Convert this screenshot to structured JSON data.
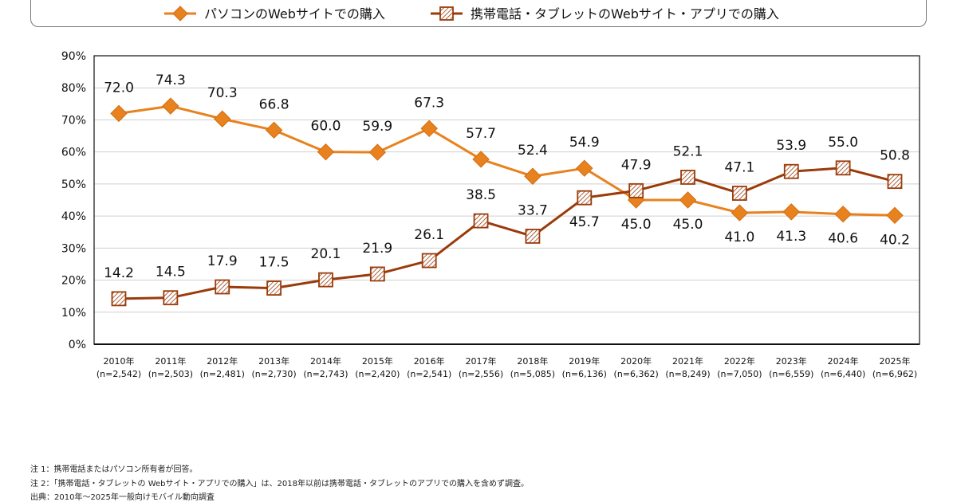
{
  "chart_data": {
    "type": "line",
    "title": "",
    "xlabel": "",
    "ylabel": "",
    "ylim": [
      0,
      90
    ],
    "y_ticks": [
      "0%",
      "10%",
      "20%",
      "30%",
      "40%",
      "50%",
      "60%",
      "70%",
      "80%",
      "90%"
    ],
    "y_tick_values": [
      0,
      10,
      20,
      30,
      40,
      50,
      60,
      70,
      80,
      90
    ],
    "grid": true,
    "legend_placement": "top",
    "categories": [
      "2010年",
      "2011年",
      "2012年",
      "2013年",
      "2014年",
      "2015年",
      "2016年",
      "2017年",
      "2018年",
      "2019年",
      "2020年",
      "2021年",
      "2022年",
      "2023年",
      "2024年",
      "2025年"
    ],
    "category_samples": [
      "(n=2,542)",
      "(n=2,503)",
      "(n=2,481)",
      "(n=2,730)",
      "(n=2,743)",
      "(n=2,420)",
      "(n=2,541)",
      "(n=2,556)",
      "(n=5,085)",
      "(n=6,136)",
      "(n=6,362)",
      "(n=8,249)",
      "(n=7,050)",
      "(n=6,559)",
      "(n=6,440)",
      "(n=6,962)"
    ],
    "series": [
      {
        "name": "パソコンのWebサイトでの購入",
        "marker": "diamond",
        "color": "#E8821E",
        "values": [
          72.0,
          74.3,
          70.3,
          66.8,
          60.0,
          59.9,
          67.3,
          57.7,
          52.4,
          54.9,
          45.0,
          45.0,
          41.0,
          41.3,
          40.6,
          40.2
        ],
        "labels": [
          "72.0",
          "74.3",
          "70.3",
          "66.8",
          "60.0",
          "59.9",
          "67.3",
          "57.7",
          "52.4",
          "54.9",
          "45.0",
          "45.0",
          "41.0",
          "41.3",
          "40.6",
          "40.2"
        ],
        "label_side": [
          "above",
          "above",
          "above",
          "above",
          "above",
          "above",
          "above",
          "above",
          "above",
          "above",
          "below",
          "below",
          "below",
          "below",
          "below",
          "below"
        ]
      },
      {
        "name": "携帯電話・タブレットのWebサイト・アプリでの購入",
        "marker": "hatched-square",
        "color": "#9A3B0B",
        "values": [
          14.2,
          14.5,
          17.9,
          17.5,
          20.1,
          21.9,
          26.1,
          38.5,
          33.7,
          45.7,
          47.9,
          52.1,
          47.1,
          53.9,
          55.0,
          50.8
        ],
        "labels": [
          "14.2",
          "14.5",
          "17.9",
          "17.5",
          "20.1",
          "21.9",
          "26.1",
          "38.5",
          "33.7",
          "45.7",
          "47.9",
          "52.1",
          "47.1",
          "53.9",
          "55.0",
          "50.8"
        ],
        "label_side": [
          "above",
          "above",
          "above",
          "above",
          "above",
          "above",
          "above",
          "above",
          "above",
          "below",
          "above",
          "above",
          "above",
          "above",
          "above",
          "above"
        ]
      }
    ]
  },
  "notes": [
    "注 1：携帯電話またはパソコン所有者が回答。",
    "注 2：「携帯電話・タブレットの Webサイト・アプリでの購入」は、2018年以前は携帯電話・タブレットのアプリでの購入を含めず調査。",
    "出典：2010年～2025年一般向けモバイル動向調査"
  ]
}
